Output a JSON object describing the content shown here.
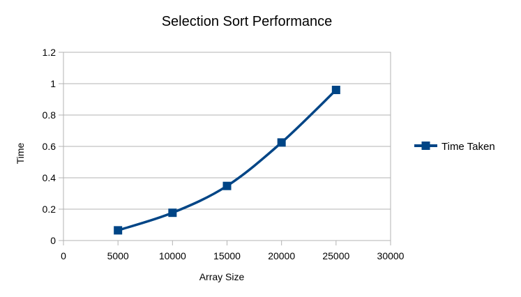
{
  "chart_data": {
    "type": "scatter",
    "title": "Selection Sort Performance",
    "xlabel": "Array Size",
    "ylabel": "Time",
    "xlim": [
      0,
      30000
    ],
    "ylim": [
      0,
      1.2
    ],
    "x_ticks": [
      0,
      5000,
      10000,
      15000,
      20000,
      25000,
      30000
    ],
    "y_ticks": [
      0,
      0.2,
      0.4,
      0.6,
      0.8,
      1,
      1.2
    ],
    "x_tick_labels": [
      "0",
      "5000",
      "10000",
      "15000",
      "20000",
      "25000",
      "30000"
    ],
    "y_tick_labels": [
      "0",
      "0.2",
      "0.4",
      "0.6",
      "0.8",
      "1",
      "1.2"
    ],
    "grid": "horizontal",
    "legend": "right",
    "series": [
      {
        "name": "Time Taken",
        "color": "#004586",
        "marker": "square",
        "line": "smooth",
        "x": [
          5000,
          10000,
          15000,
          20000,
          25000
        ],
        "y": [
          0.065,
          0.177,
          0.348,
          0.625,
          0.96
        ]
      }
    ]
  }
}
